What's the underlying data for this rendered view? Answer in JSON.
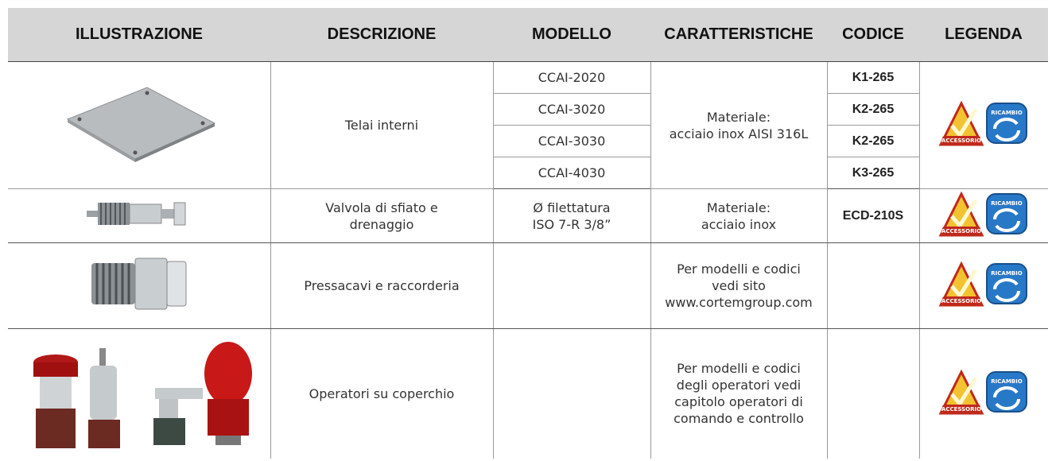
{
  "table": {
    "headers": [
      "ILLUSTRAZIONE",
      "DESCRIZIONE",
      "MODELLO",
      "CARATTERISTICHE",
      "CODICE",
      "LEGENDA"
    ],
    "rows": [
      {
        "description": [
          "Telai interni"
        ],
        "models": [
          "CCAI-2020",
          "CCAI-3020",
          "CCAI-3030",
          "CCAI-4030"
        ],
        "features": [
          "Materiale:",
          "acciaio inox AISI 316L"
        ],
        "codes": [
          "K1-265",
          "K2-265",
          "K2-265",
          "K3-265"
        ],
        "legend": [
          "ACCESSORIO",
          "RICAMBIO"
        ]
      },
      {
        "description": [
          "Valvola di sfiato e",
          "drenaggio"
        ],
        "models": [
          "Ø filettatura",
          "ISO 7-R 3/8”"
        ],
        "features": [
          "Materiale:",
          "acciaio inox"
        ],
        "codes": [
          "ECD-210S"
        ],
        "legend": [
          "ACCESSORIO",
          "RICAMBIO"
        ]
      },
      {
        "description": [
          "Pressacavi e raccorderia"
        ],
        "features": [
          "Per modelli e codici",
          "vedi sito",
          "www.cortemgroup.com"
        ],
        "legend": [
          "ACCESSORIO",
          "RICAMBIO"
        ]
      },
      {
        "description": [
          "Operatori su coperchio"
        ],
        "features": [
          "Per modelli e codici",
          "degli operatori vedi",
          "capitolo operatori di",
          "comando e controllo"
        ],
        "legend": [
          "ACCESSORIO",
          "RICAMBIO"
        ]
      }
    ]
  }
}
